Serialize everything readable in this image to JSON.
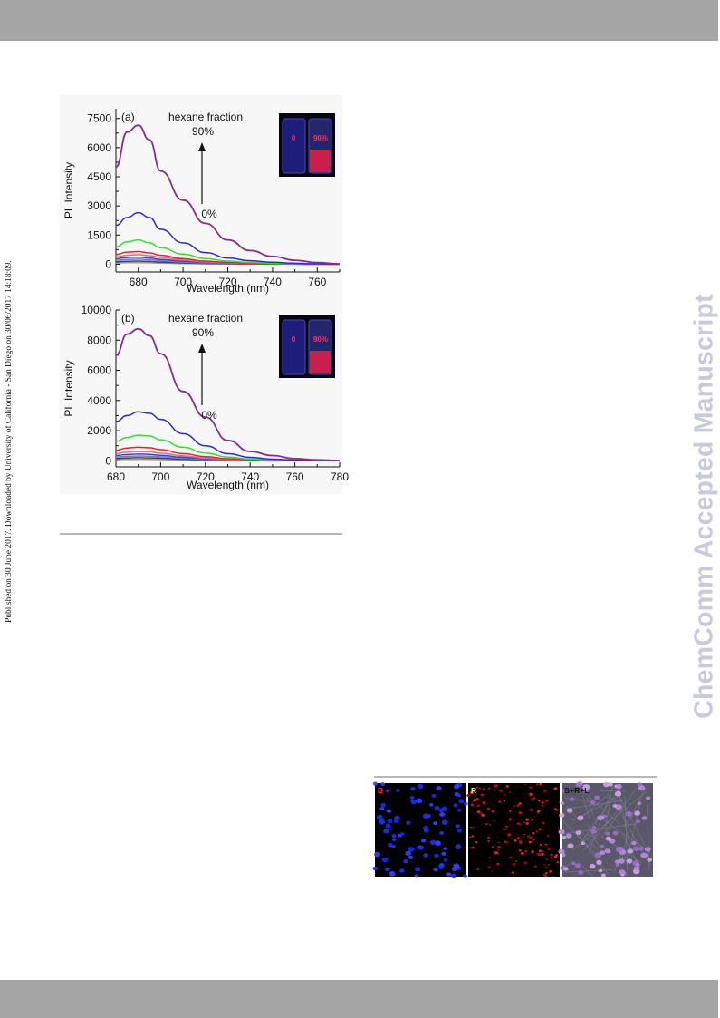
{
  "side_note": "Published on 30 June 2017. Downloaded by University of California - San Diego on 30/06/2017 14:18:09.",
  "watermark": "ChemComm Accepted Manuscript",
  "colors": {
    "band": "#a5a5a5",
    "watermark": "#c9c9dc",
    "series": [
      "#8a2d8a",
      "#2a2ad8",
      "#33dd33",
      "#ee2222",
      "#cc7788",
      "#4444cc",
      "#7777dd",
      "#444444",
      "#999999"
    ]
  },
  "chart_data": [
    {
      "type": "line",
      "panel_label": "(a)",
      "xlabel": "Wavelength (nm)",
      "ylabel": "PL Intensity",
      "xlim": [
        670,
        770
      ],
      "ylim": [
        -400,
        8000
      ],
      "xticks": [
        680,
        700,
        720,
        740,
        760
      ],
      "yticks": [
        0,
        1500,
        3000,
        4500,
        6000,
        7500
      ],
      "annotation_top": "hexane fraction",
      "annotation_pct_top": "90%",
      "annotation_pct_bottom": "0%",
      "inset_labels": [
        "0",
        "90%"
      ],
      "x": [
        670,
        675,
        680,
        685,
        690,
        700,
        710,
        720,
        730,
        740,
        750,
        760,
        770
      ],
      "series": [
        {
          "values": [
            5000,
            6800,
            7150,
            6400,
            4800,
            3300,
            2100,
            1250,
            700,
            400,
            200,
            80,
            20
          ]
        },
        {
          "values": [
            2000,
            2400,
            2650,
            2400,
            1800,
            1100,
            600,
            320,
            180,
            100,
            50,
            20,
            5
          ]
        },
        {
          "values": [
            900,
            1150,
            1250,
            1100,
            850,
            520,
            290,
            160,
            90,
            50,
            25,
            10,
            3
          ]
        },
        {
          "values": [
            500,
            620,
            650,
            580,
            460,
            280,
            160,
            90,
            50,
            28,
            14,
            6,
            2
          ]
        },
        {
          "values": [
            380,
            460,
            490,
            440,
            350,
            210,
            120,
            65,
            37,
            20,
            10,
            4,
            1
          ]
        },
        {
          "values": [
            280,
            340,
            360,
            320,
            250,
            150,
            85,
            48,
            27,
            15,
            8,
            3,
            1
          ]
        },
        {
          "values": [
            200,
            240,
            260,
            230,
            180,
            110,
            62,
            35,
            20,
            11,
            6,
            2,
            1
          ]
        },
        {
          "values": [
            120,
            150,
            160,
            140,
            110,
            68,
            38,
            22,
            12,
            7,
            4,
            2,
            1
          ]
        },
        {
          "values": [
            60,
            75,
            80,
            70,
            55,
            34,
            19,
            11,
            6,
            3,
            2,
            1,
            0
          ]
        }
      ]
    },
    {
      "type": "line",
      "panel_label": "(b)",
      "xlabel": "Wavelength (nm)",
      "ylabel": "PL Intensity",
      "xlim": [
        680,
        780
      ],
      "ylim": [
        -400,
        10000
      ],
      "xticks": [
        680,
        700,
        720,
        740,
        760,
        780
      ],
      "yticks": [
        0,
        2000,
        4000,
        6000,
        8000,
        10000
      ],
      "annotation_top": "hexane fraction",
      "annotation_pct_top": "90%",
      "annotation_pct_bottom": "0%",
      "inset_labels": [
        "0",
        "90%"
      ],
      "x": [
        680,
        685,
        690,
        695,
        700,
        710,
        720,
        730,
        740,
        750,
        760,
        770,
        780
      ],
      "series": [
        {
          "values": [
            7000,
            8400,
            8750,
            8300,
            7100,
            4600,
            2900,
            1350,
            620,
            350,
            150,
            60,
            20
          ]
        },
        {
          "values": [
            2600,
            3000,
            3250,
            3150,
            2750,
            1800,
            1000,
            480,
            230,
            110,
            50,
            20,
            5
          ]
        },
        {
          "values": [
            1300,
            1550,
            1700,
            1650,
            1400,
            900,
            520,
            250,
            120,
            60,
            25,
            10,
            3
          ]
        },
        {
          "values": [
            700,
            850,
            900,
            870,
            740,
            480,
            280,
            140,
            65,
            32,
            14,
            5,
            2
          ]
        },
        {
          "values": [
            480,
            580,
            620,
            600,
            510,
            330,
            190,
            95,
            45,
            22,
            10,
            4,
            1
          ]
        },
        {
          "values": [
            350,
            420,
            450,
            430,
            370,
            240,
            140,
            70,
            33,
            16,
            7,
            3,
            1
          ]
        },
        {
          "values": [
            250,
            300,
            320,
            310,
            265,
            170,
            100,
            50,
            24,
            12,
            5,
            2,
            1
          ]
        },
        {
          "values": [
            160,
            190,
            205,
            195,
            170,
            110,
            63,
            32,
            15,
            7,
            3,
            1,
            0
          ]
        },
        {
          "values": [
            80,
            95,
            100,
            95,
            82,
            53,
            31,
            16,
            7,
            4,
            2,
            1,
            0
          ]
        }
      ]
    }
  ],
  "cell_images": [
    {
      "label": "B",
      "label_color": "#ff3333"
    },
    {
      "label": "R",
      "label_color": "#ffff33"
    },
    {
      "label": "B+R+L",
      "label_color": "#111111"
    }
  ]
}
